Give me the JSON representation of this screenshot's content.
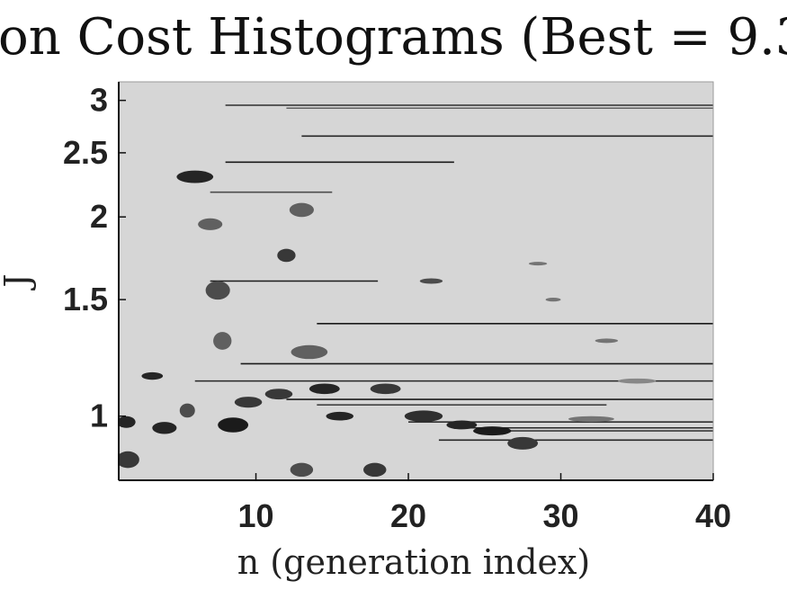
{
  "chart_data": {
    "type": "heatmap",
    "title": "on Cost Histograms (Best = 9.3",
    "xlabel": "n (generation index)",
    "ylabel": "J",
    "xlim": [
      1,
      40
    ],
    "ylim": [
      0.8,
      3.2
    ],
    "y_scale": "log",
    "xticks": [
      10,
      20,
      30,
      40
    ],
    "xtick_labels": [
      "10",
      "20",
      "30",
      "40"
    ],
    "yticks": [
      1,
      1.5,
      2,
      2.5,
      3
    ],
    "ytick_labels": [
      "1",
      "1.5",
      "2",
      "2.5",
      "3"
    ],
    "background_color": "#d6d6d6",
    "mark_color": "#111111",
    "grid": false,
    "streaks": [
      {
        "y": 2.95,
        "x_start": 8,
        "x_end": 40,
        "intensity": 0.85
      },
      {
        "y": 2.92,
        "x_start": 12,
        "x_end": 40,
        "intensity": 0.6
      },
      {
        "y": 2.65,
        "x_start": 13,
        "x_end": 40,
        "intensity": 0.9
      },
      {
        "y": 2.42,
        "x_start": 8,
        "x_end": 23,
        "intensity": 0.95
      },
      {
        "y": 2.18,
        "x_start": 7,
        "x_end": 15,
        "intensity": 0.7
      },
      {
        "y": 1.6,
        "x_start": 7,
        "x_end": 18,
        "intensity": 0.95
      },
      {
        "y": 1.38,
        "x_start": 14,
        "x_end": 40,
        "intensity": 0.95
      },
      {
        "y": 1.2,
        "x_start": 9,
        "x_end": 40,
        "intensity": 0.95
      },
      {
        "y": 1.13,
        "x_start": 6,
        "x_end": 40,
        "intensity": 0.9
      },
      {
        "y": 1.06,
        "x_start": 12,
        "x_end": 40,
        "intensity": 0.95
      },
      {
        "y": 1.04,
        "x_start": 14,
        "x_end": 33,
        "intensity": 0.75
      },
      {
        "y": 0.98,
        "x_start": 20,
        "x_end": 40,
        "intensity": 0.85
      },
      {
        "y": 0.96,
        "x_start": 24,
        "x_end": 40,
        "intensity": 0.9
      },
      {
        "y": 0.95,
        "x_start": 26,
        "x_end": 40,
        "intensity": 0.8
      },
      {
        "y": 0.92,
        "x_start": 22,
        "x_end": 40,
        "intensity": 0.9
      }
    ],
    "blobs": [
      {
        "x": 1.5,
        "y": 0.98,
        "w": 1.2,
        "h": 0.04,
        "intensity": 0.9
      },
      {
        "x": 1.6,
        "y": 0.86,
        "w": 1.5,
        "h": 0.05,
        "intensity": 0.8
      },
      {
        "x": 3.2,
        "y": 1.15,
        "w": 1.4,
        "h": 0.03,
        "intensity": 0.9
      },
      {
        "x": 4.0,
        "y": 0.96,
        "w": 1.6,
        "h": 0.04,
        "intensity": 0.9
      },
      {
        "x": 5.5,
        "y": 1.02,
        "w": 1.0,
        "h": 0.05,
        "intensity": 0.7
      },
      {
        "x": 6.0,
        "y": 2.3,
        "w": 2.4,
        "h": 0.1,
        "intensity": 0.9
      },
      {
        "x": 7.0,
        "y": 1.95,
        "w": 1.6,
        "h": 0.08,
        "intensity": 0.6
      },
      {
        "x": 7.5,
        "y": 1.55,
        "w": 1.6,
        "h": 0.1,
        "intensity": 0.7
      },
      {
        "x": 7.8,
        "y": 1.3,
        "w": 1.2,
        "h": 0.08,
        "intensity": 0.6
      },
      {
        "x": 8.5,
        "y": 0.97,
        "w": 2.0,
        "h": 0.05,
        "intensity": 0.95
      },
      {
        "x": 9.5,
        "y": 1.05,
        "w": 1.8,
        "h": 0.04,
        "intensity": 0.8
      },
      {
        "x": 11.5,
        "y": 1.08,
        "w": 1.8,
        "h": 0.04,
        "intensity": 0.8
      },
      {
        "x": 12.0,
        "y": 1.75,
        "w": 1.2,
        "h": 0.08,
        "intensity": 0.8
      },
      {
        "x": 13.0,
        "y": 2.05,
        "w": 1.6,
        "h": 0.1,
        "intensity": 0.6
      },
      {
        "x": 13.5,
        "y": 1.25,
        "w": 2.4,
        "h": 0.06,
        "intensity": 0.6
      },
      {
        "x": 14.5,
        "y": 1.1,
        "w": 2.0,
        "h": 0.04,
        "intensity": 0.9
      },
      {
        "x": 15.5,
        "y": 1.0,
        "w": 1.8,
        "h": 0.03,
        "intensity": 0.9
      },
      {
        "x": 13.0,
        "y": 0.83,
        "w": 1.5,
        "h": 0.04,
        "intensity": 0.7
      },
      {
        "x": 17.8,
        "y": 0.83,
        "w": 1.5,
        "h": 0.04,
        "intensity": 0.8
      },
      {
        "x": 18.5,
        "y": 1.1,
        "w": 2.0,
        "h": 0.04,
        "intensity": 0.8
      },
      {
        "x": 21.5,
        "y": 1.6,
        "w": 1.5,
        "h": 0.03,
        "intensity": 0.7
      },
      {
        "x": 21.0,
        "y": 1.0,
        "w": 2.5,
        "h": 0.04,
        "intensity": 0.85
      },
      {
        "x": 23.5,
        "y": 0.97,
        "w": 2.0,
        "h": 0.03,
        "intensity": 0.9
      },
      {
        "x": 25.5,
        "y": 0.95,
        "w": 2.5,
        "h": 0.03,
        "intensity": 0.95
      },
      {
        "x": 27.5,
        "y": 0.91,
        "w": 2.0,
        "h": 0.04,
        "intensity": 0.8
      },
      {
        "x": 28.5,
        "y": 1.7,
        "w": 1.2,
        "h": 0.02,
        "intensity": 0.5
      },
      {
        "x": 29.5,
        "y": 1.5,
        "w": 1.0,
        "h": 0.02,
        "intensity": 0.5
      },
      {
        "x": 33.0,
        "y": 1.3,
        "w": 1.5,
        "h": 0.02,
        "intensity": 0.5
      },
      {
        "x": 35.0,
        "y": 1.13,
        "w": 2.5,
        "h": 0.02,
        "intensity": 0.4
      },
      {
        "x": 32.0,
        "y": 0.99,
        "w": 3.0,
        "h": 0.02,
        "intensity": 0.5
      }
    ]
  }
}
